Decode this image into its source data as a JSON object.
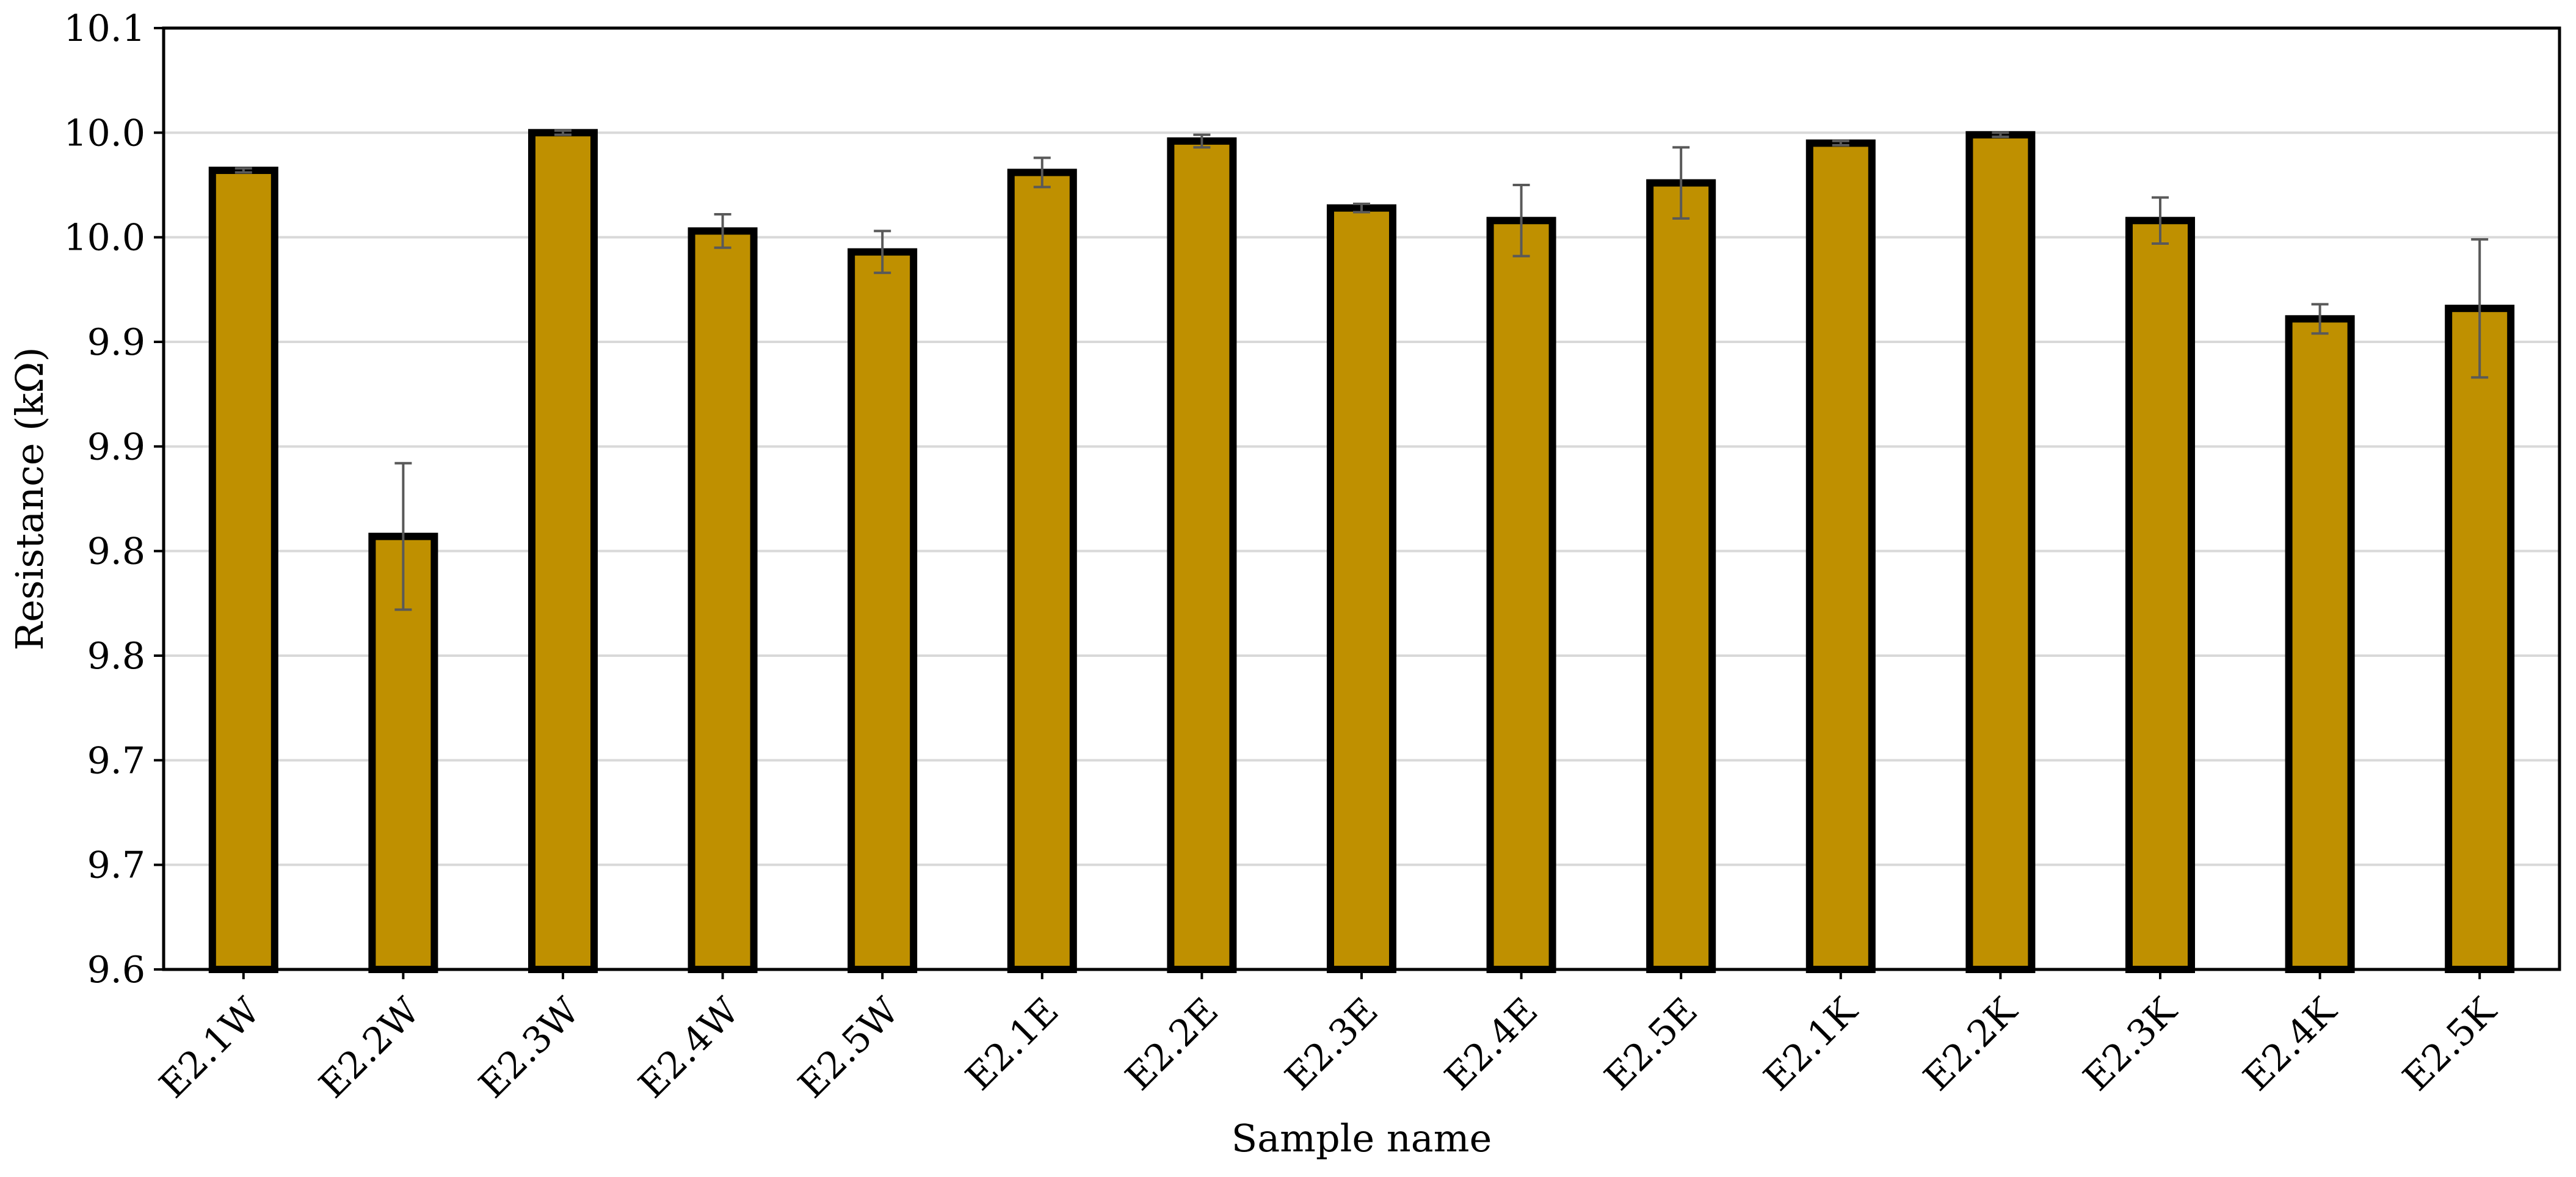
{
  "chart_data": {
    "type": "bar",
    "title": "",
    "xlabel": "Sample name",
    "ylabel": "Resistance (kΩ)",
    "ylim": [
      9.6,
      10.05
    ],
    "yticks": [
      {
        "value": 9.6,
        "label": "9.6"
      },
      {
        "value": 9.65,
        "label": "9.7"
      },
      {
        "value": 9.7,
        "label": "9.7"
      },
      {
        "value": 9.75,
        "label": "9.8"
      },
      {
        "value": 9.8,
        "label": "9.8"
      },
      {
        "value": 9.85,
        "label": "9.9"
      },
      {
        "value": 9.9,
        "label": "9.9"
      },
      {
        "value": 9.95,
        "label": "10.0"
      },
      {
        "value": 10.0,
        "label": "10.0"
      },
      {
        "value": 10.05,
        "label": "10.1"
      }
    ],
    "grid": true,
    "legend": "none",
    "categories": [
      "E2.1W",
      "E2.2W",
      "E2.3W",
      "E2.4W",
      "E2.5W",
      "E2.1E",
      "E2.2E",
      "E2.3E",
      "E2.4E",
      "E2.5E",
      "E2.1K",
      "E2.2K",
      "E2.3K",
      "E2.4K",
      "E2.5K"
    ],
    "values": [
      9.982,
      9.807,
      10.0,
      9.953,
      9.943,
      9.981,
      9.996,
      9.964,
      9.958,
      9.976,
      9.995,
      9.999,
      9.958,
      9.911,
      9.916
    ],
    "errors": [
      0.001,
      0.035,
      0.001,
      0.008,
      0.01,
      0.007,
      0.003,
      0.002,
      0.017,
      0.017,
      0.001,
      0.001,
      0.011,
      0.007,
      0.033
    ],
    "colors": {
      "bar_fill": "#bf9000",
      "bar_stroke": "#000000",
      "error_bar": "#595959",
      "grid": "#d9d9d9",
      "axis": "#000000"
    }
  }
}
